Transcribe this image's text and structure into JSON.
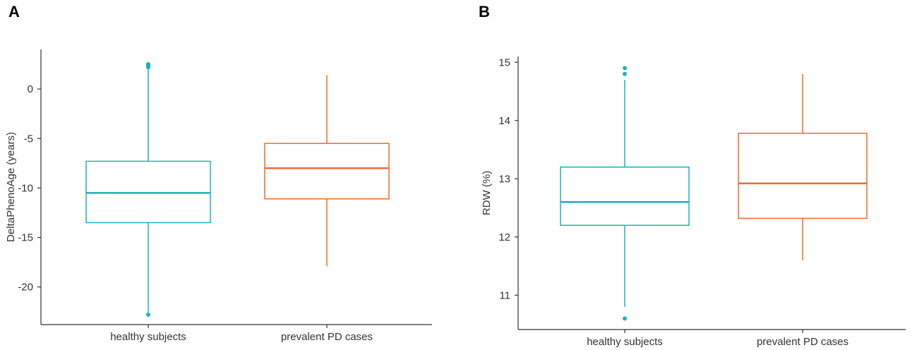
{
  "colors": {
    "healthy": "#1ab2c0",
    "pd": "#f06a2e",
    "axis": "#333333"
  },
  "chart_data": [
    {
      "type": "box",
      "panel_label": "A",
      "title": "",
      "xlabel": "",
      "ylabel": "DeltaPhenoAge (years)",
      "ylim": [
        -23.8,
        4.0
      ],
      "yticks": [
        0,
        -5,
        -10,
        -15,
        -20
      ],
      "categories": [
        "healthy subjects",
        "prevalent PD cases"
      ],
      "series": [
        {
          "name": "healthy subjects",
          "whisker_low": -22.6,
          "q1": -13.5,
          "median": -10.5,
          "q3": -7.3,
          "whisker_high": 2.0,
          "outliers": [
            2.2,
            2.3,
            2.4,
            2.5,
            -22.8
          ]
        },
        {
          "name": "prevalent PD cases",
          "whisker_low": -17.9,
          "q1": -11.1,
          "median": -8.0,
          "q3": -5.5,
          "whisker_high": 1.4,
          "outliers": []
        }
      ]
    },
    {
      "type": "box",
      "panel_label": "B",
      "title": "",
      "xlabel": "",
      "ylabel": "RDW (%)",
      "ylim": [
        10.41,
        15.1
      ],
      "yticks": [
        11,
        12,
        13,
        14,
        15
      ],
      "categories": [
        "healthy subjects",
        "prevalent PD cases"
      ],
      "series": [
        {
          "name": "healthy subjects",
          "whisker_low": 10.8,
          "q1": 12.2,
          "median": 12.6,
          "q3": 13.2,
          "whisker_high": 14.7,
          "outliers": [
            14.8,
            14.9,
            10.6
          ]
        },
        {
          "name": "prevalent PD cases",
          "whisker_low": 11.6,
          "q1": 12.32,
          "median": 12.92,
          "q3": 13.78,
          "whisker_high": 14.8,
          "outliers": []
        }
      ]
    }
  ]
}
